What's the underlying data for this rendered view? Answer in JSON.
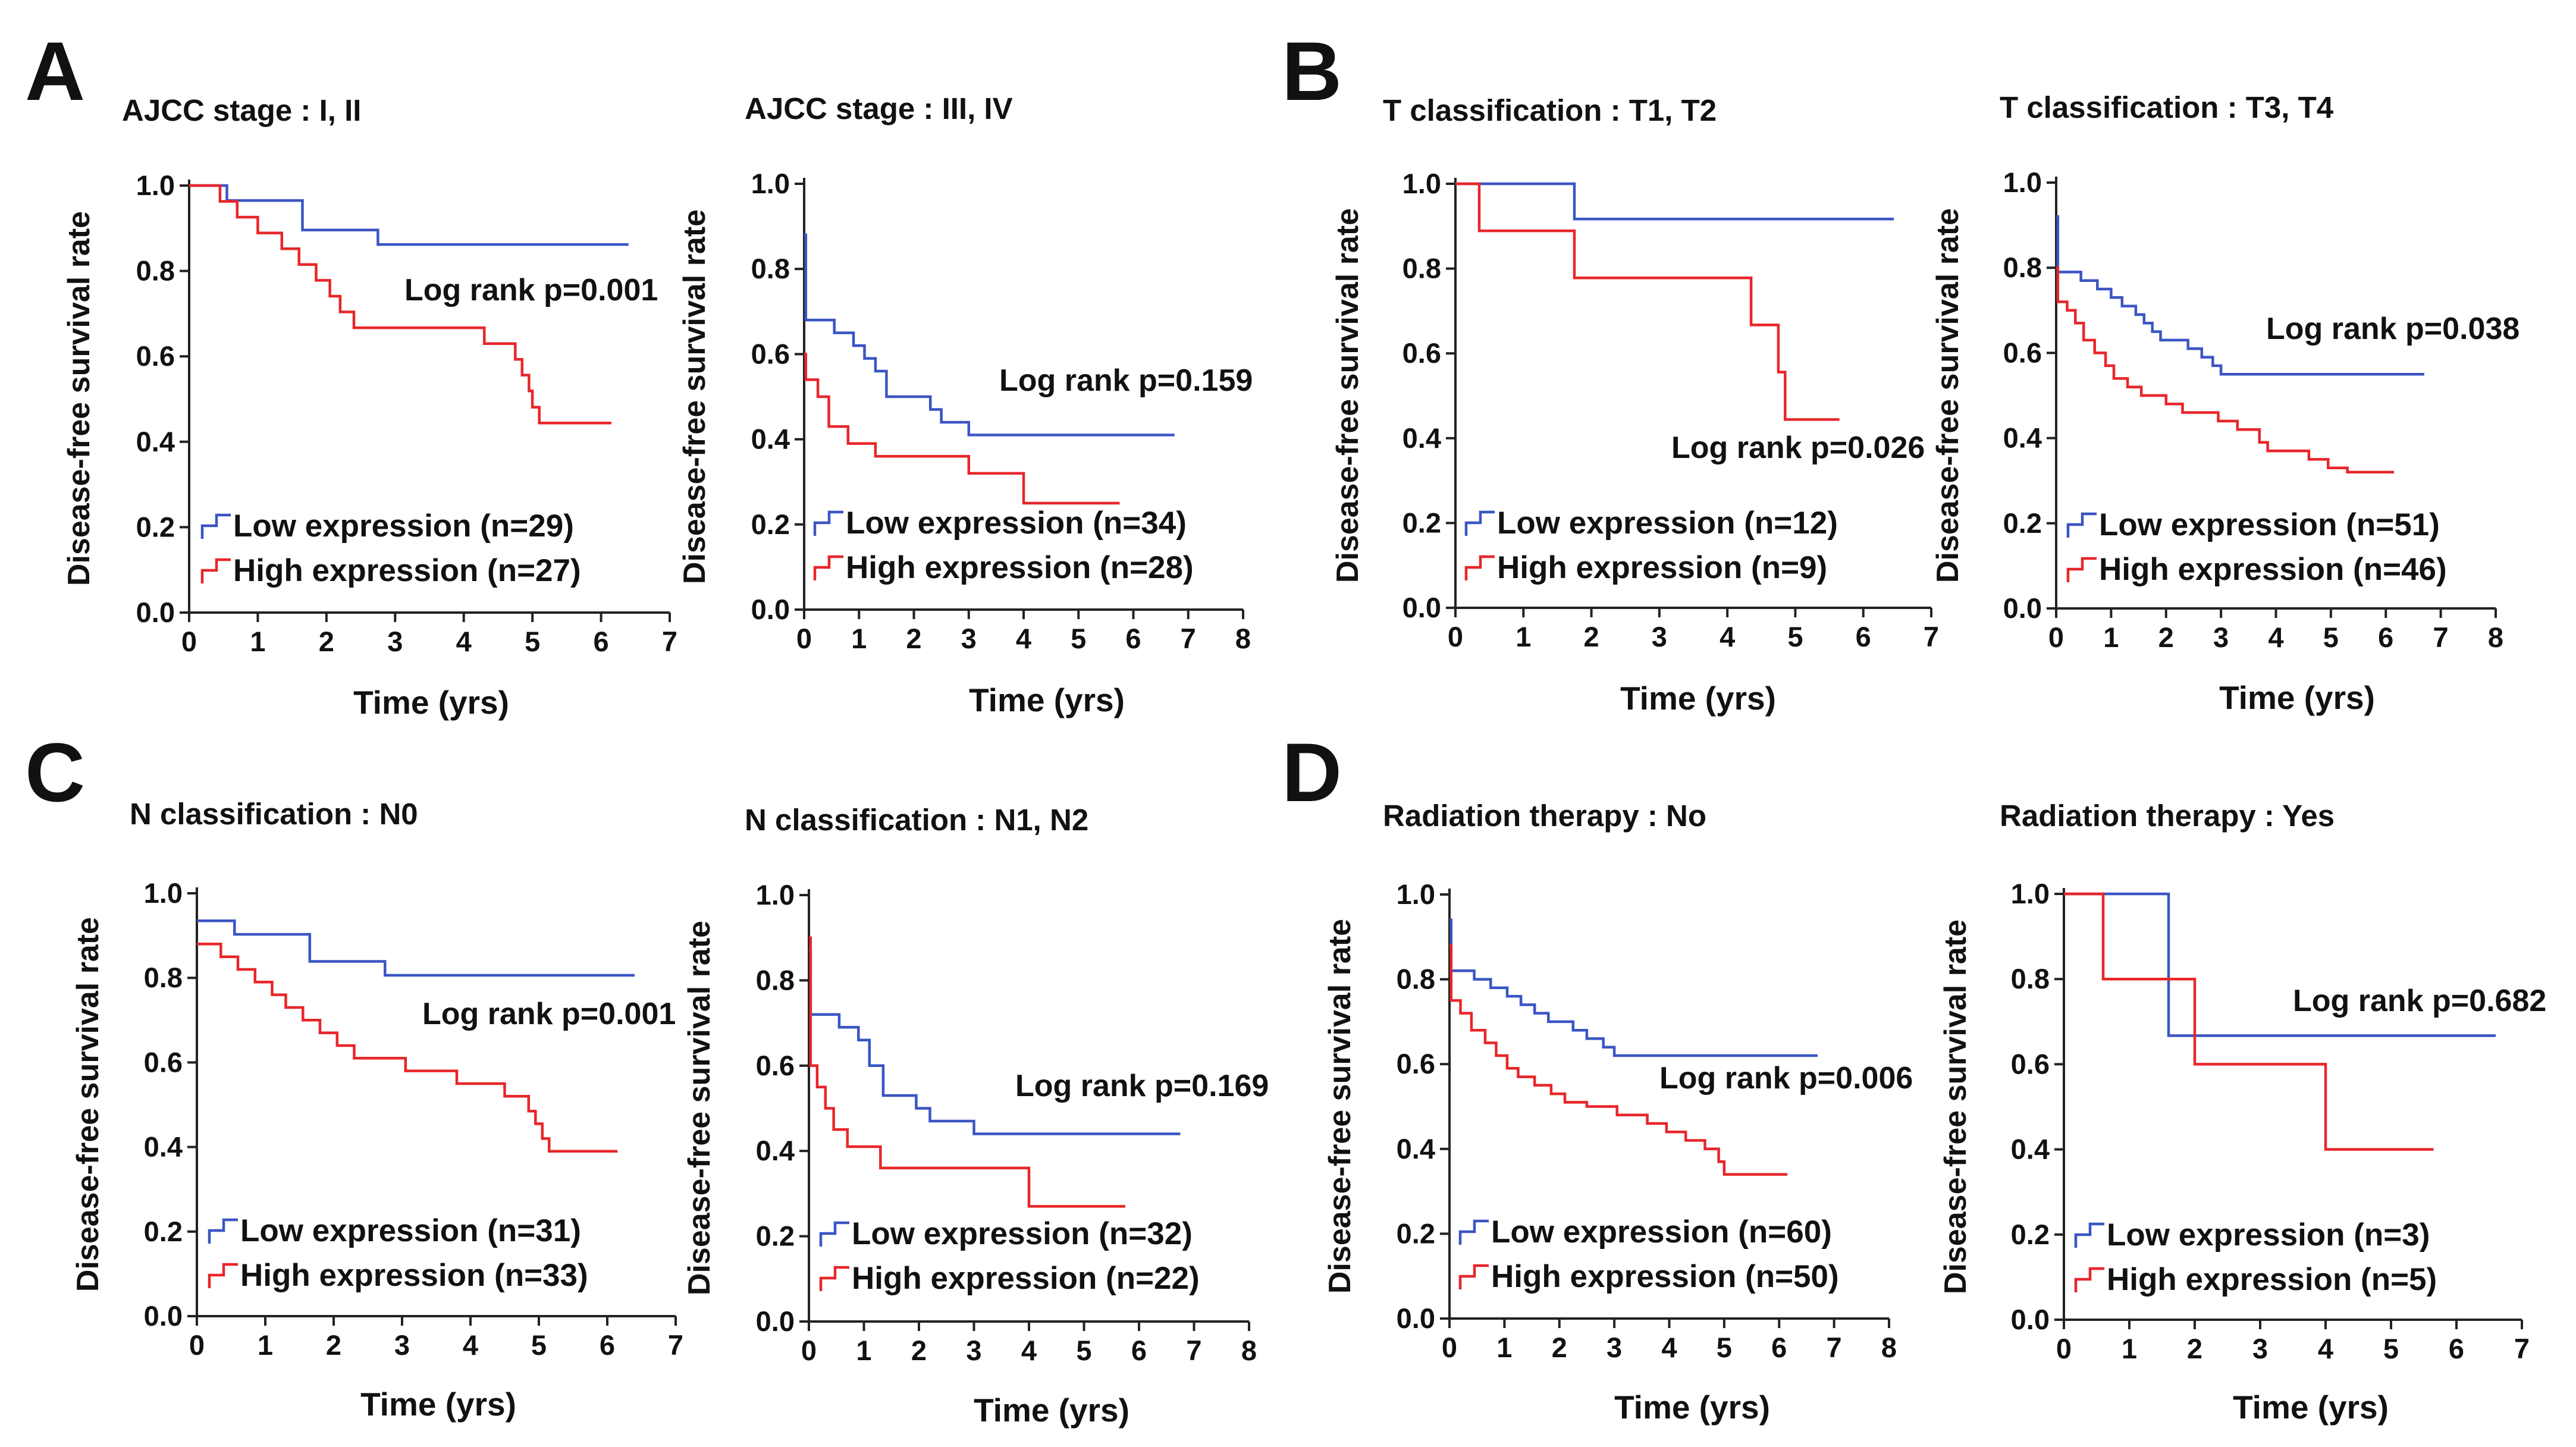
{
  "figure": {
    "panel_labels": [
      "A",
      "B",
      "C",
      "D"
    ],
    "colors": {
      "low": "#3b55c4",
      "high": "#e8262a",
      "axis": "#222222",
      "text": "#111111"
    }
  },
  "chart_data": [
    {
      "type": "line",
      "id": "a1",
      "panel": "A",
      "title": "AJCC stage : I, II",
      "xlabel": "Time (yrs)",
      "ylabel": "Disease-free survival rate",
      "xlim": [
        0,
        7
      ],
      "ylim": [
        0,
        1
      ],
      "xticks": [
        "0",
        "1",
        "2",
        "3",
        "4",
        "5",
        "6",
        "7"
      ],
      "yticks": [
        "0.0",
        "0.2",
        "0.4",
        "0.6",
        "0.8",
        "1.0"
      ],
      "pvalue": "Log rank p=0.001",
      "series": [
        {
          "name": "Low expression (n=29)",
          "color": "#3b55c4",
          "steps": [
            [
              0,
              1.0
            ],
            [
              0.55,
              0.965
            ],
            [
              1.65,
              0.896
            ],
            [
              2.75,
              0.862
            ],
            [
              6.4,
              0.862
            ]
          ]
        },
        {
          "name": "High expression (n=27)",
          "color": "#e8262a",
          "steps": [
            [
              0,
              1.0
            ],
            [
              0.45,
              0.963
            ],
            [
              0.7,
              0.926
            ],
            [
              1.0,
              0.889
            ],
            [
              1.35,
              0.852
            ],
            [
              1.6,
              0.815
            ],
            [
              1.85,
              0.778
            ],
            [
              2.05,
              0.741
            ],
            [
              2.2,
              0.704
            ],
            [
              2.4,
              0.667
            ],
            [
              4.3,
              0.63
            ],
            [
              4.75,
              0.593
            ],
            [
              4.85,
              0.556
            ],
            [
              4.95,
              0.519
            ],
            [
              5.0,
              0.481
            ],
            [
              5.1,
              0.444
            ],
            [
              6.15,
              0.444
            ]
          ]
        }
      ]
    },
    {
      "type": "line",
      "id": "a2",
      "panel": "A",
      "title": "AJCC stage : III, IV",
      "xlabel": "Time (yrs)",
      "ylabel": "Disease-free survival rate",
      "xlim": [
        0,
        8
      ],
      "ylim": [
        0,
        1
      ],
      "xticks": [
        "0",
        "1",
        "2",
        "3",
        "4",
        "5",
        "6",
        "7",
        "8"
      ],
      "yticks": [
        "0.0",
        "0.2",
        "0.4",
        "0.6",
        "0.8",
        "1.0"
      ],
      "pvalue": "Log rank p=0.159",
      "series": [
        {
          "name": "Low expression (n=34)",
          "color": "#3b55c4",
          "steps": [
            [
              0,
              0.88
            ],
            [
              0.03,
              0.68
            ],
            [
              0.55,
              0.65
            ],
            [
              0.9,
              0.62
            ],
            [
              1.1,
              0.59
            ],
            [
              1.3,
              0.56
            ],
            [
              1.5,
              0.5
            ],
            [
              2.3,
              0.47
            ],
            [
              2.5,
              0.44
            ],
            [
              3.0,
              0.41
            ],
            [
              6.75,
              0.41
            ]
          ]
        },
        {
          "name": "High expression (n=28)",
          "color": "#e8262a",
          "steps": [
            [
              0,
              0.6
            ],
            [
              0.03,
              0.54
            ],
            [
              0.25,
              0.5
            ],
            [
              0.45,
              0.43
            ],
            [
              0.8,
              0.39
            ],
            [
              1.3,
              0.36
            ],
            [
              3.0,
              0.32
            ],
            [
              4.0,
              0.25
            ],
            [
              5.75,
              0.25
            ]
          ]
        }
      ]
    },
    {
      "type": "line",
      "id": "b1",
      "panel": "B",
      "title": "T classification : T1, T2",
      "xlabel": "Time (yrs)",
      "ylabel": "Disease-free survival rate",
      "xlim": [
        0,
        7
      ],
      "ylim": [
        0,
        1
      ],
      "xticks": [
        "0",
        "1",
        "2",
        "3",
        "4",
        "5",
        "6",
        "7"
      ],
      "yticks": [
        "0.0",
        "0.2",
        "0.4",
        "0.6",
        "0.8",
        "1.0"
      ],
      "pvalue": "Log rank p=0.026",
      "series": [
        {
          "name": "Low expression (n=12)",
          "color": "#3b55c4",
          "steps": [
            [
              0,
              1.0
            ],
            [
              1.75,
              0.917
            ],
            [
              6.45,
              0.917
            ]
          ]
        },
        {
          "name": "High expression (n=9)",
          "color": "#e8262a",
          "steps": [
            [
              0,
              1.0
            ],
            [
              0.35,
              0.889
            ],
            [
              1.75,
              0.778
            ],
            [
              4.35,
              0.667
            ],
            [
              4.75,
              0.556
            ],
            [
              4.85,
              0.444
            ],
            [
              5.65,
              0.444
            ]
          ]
        }
      ]
    },
    {
      "type": "line",
      "id": "b2",
      "panel": "B",
      "title": "T classification : T3, T4",
      "xlabel": "Time (yrs)",
      "ylabel": "Disease-free survival rate",
      "xlim": [
        0,
        8
      ],
      "ylim": [
        0,
        1
      ],
      "xticks": [
        "0",
        "1",
        "2",
        "3",
        "4",
        "5",
        "6",
        "7",
        "8"
      ],
      "yticks": [
        "0.0",
        "0.2",
        "0.4",
        "0.6",
        "0.8",
        "1.0"
      ],
      "pvalue": "Log rank p=0.038",
      "series": [
        {
          "name": "Low expression (n=51)",
          "color": "#3b55c4",
          "steps": [
            [
              0,
              0.92
            ],
            [
              0.03,
              0.79
            ],
            [
              0.45,
              0.77
            ],
            [
              0.75,
              0.75
            ],
            [
              1.0,
              0.73
            ],
            [
              1.2,
              0.71
            ],
            [
              1.45,
              0.69
            ],
            [
              1.6,
              0.67
            ],
            [
              1.75,
              0.65
            ],
            [
              1.9,
              0.63
            ],
            [
              2.4,
              0.61
            ],
            [
              2.65,
              0.59
            ],
            [
              2.85,
              0.57
            ],
            [
              3.0,
              0.55
            ],
            [
              6.7,
              0.55
            ]
          ]
        },
        {
          "name": "High expression (n=46)",
          "color": "#e8262a",
          "steps": [
            [
              0,
              0.8
            ],
            [
              0.03,
              0.72
            ],
            [
              0.2,
              0.7
            ],
            [
              0.35,
              0.67
            ],
            [
              0.5,
              0.63
            ],
            [
              0.7,
              0.6
            ],
            [
              0.9,
              0.57
            ],
            [
              1.05,
              0.54
            ],
            [
              1.3,
              0.52
            ],
            [
              1.55,
              0.5
            ],
            [
              2.0,
              0.48
            ],
            [
              2.3,
              0.46
            ],
            [
              2.95,
              0.44
            ],
            [
              3.3,
              0.42
            ],
            [
              3.7,
              0.39
            ],
            [
              3.85,
              0.37
            ],
            [
              4.6,
              0.35
            ],
            [
              4.95,
              0.33
            ],
            [
              5.3,
              0.32
            ],
            [
              6.15,
              0.32
            ]
          ]
        }
      ]
    },
    {
      "type": "line",
      "id": "c1",
      "panel": "C",
      "title": "N classification : N0",
      "xlabel": "Time (yrs)",
      "ylabel": "Disease-free survival rate",
      "xlim": [
        0,
        7
      ],
      "ylim": [
        0,
        1
      ],
      "xticks": [
        "0",
        "1",
        "2",
        "3",
        "4",
        "5",
        "6",
        "7"
      ],
      "yticks": [
        "0.0",
        "0.2",
        "0.4",
        "0.6",
        "0.8",
        "1.0"
      ],
      "pvalue": "Log rank p=0.001",
      "series": [
        {
          "name": "Low expression (n=31)",
          "color": "#3b55c4",
          "steps": [
            [
              0,
              0.935
            ],
            [
              0.55,
              0.903
            ],
            [
              1.65,
              0.839
            ],
            [
              2.75,
              0.806
            ],
            [
              6.4,
              0.806
            ]
          ]
        },
        {
          "name": "High expression (n=33)",
          "color": "#e8262a",
          "steps": [
            [
              0,
              0.88
            ],
            [
              0.35,
              0.85
            ],
            [
              0.6,
              0.82
            ],
            [
              0.85,
              0.79
            ],
            [
              1.1,
              0.76
            ],
            [
              1.3,
              0.73
            ],
            [
              1.55,
              0.7
            ],
            [
              1.8,
              0.67
            ],
            [
              2.05,
              0.64
            ],
            [
              2.3,
              0.61
            ],
            [
              3.05,
              0.58
            ],
            [
              3.8,
              0.55
            ],
            [
              4.5,
              0.52
            ],
            [
              4.85,
              0.485
            ],
            [
              4.95,
              0.455
            ],
            [
              5.05,
              0.42
            ],
            [
              5.15,
              0.39
            ],
            [
              6.15,
              0.39
            ]
          ]
        }
      ]
    },
    {
      "type": "line",
      "id": "c2",
      "panel": "C",
      "title": "N classification : N1, N2",
      "xlabel": "Time (yrs)",
      "ylabel": "Disease-free survival rate",
      "xlim": [
        0,
        8
      ],
      "ylim": [
        0,
        1
      ],
      "xticks": [
        "0",
        "1",
        "2",
        "3",
        "4",
        "5",
        "6",
        "7",
        "8"
      ],
      "yticks": [
        "0.0",
        "0.2",
        "0.4",
        "0.6",
        "0.8",
        "1.0"
      ],
      "pvalue": "Log rank p=0.169",
      "series": [
        {
          "name": "Low expression (n=32)",
          "color": "#3b55c4",
          "steps": [
            [
              0,
              0.87
            ],
            [
              0.03,
              0.72
            ],
            [
              0.55,
              0.69
            ],
            [
              0.9,
              0.66
            ],
            [
              1.1,
              0.6
            ],
            [
              1.35,
              0.53
            ],
            [
              1.95,
              0.5
            ],
            [
              2.2,
              0.47
            ],
            [
              3.0,
              0.44
            ],
            [
              6.75,
              0.44
            ]
          ]
        },
        {
          "name": "High expression (n=22)",
          "color": "#e8262a",
          "steps": [
            [
              0,
              0.9
            ],
            [
              0.03,
              0.6
            ],
            [
              0.15,
              0.55
            ],
            [
              0.3,
              0.5
            ],
            [
              0.45,
              0.45
            ],
            [
              0.7,
              0.41
            ],
            [
              1.3,
              0.36
            ],
            [
              4.0,
              0.27
            ],
            [
              5.75,
              0.27
            ]
          ]
        }
      ]
    },
    {
      "type": "line",
      "id": "d1",
      "panel": "D",
      "title": "Radiation therapy : No",
      "xlabel": "Time (yrs)",
      "ylabel": "Disease-free survival rate",
      "xlim": [
        0,
        8
      ],
      "ylim": [
        0,
        1
      ],
      "xticks": [
        "0",
        "1",
        "2",
        "3",
        "4",
        "5",
        "6",
        "7",
        "8"
      ],
      "yticks": [
        "0.0",
        "0.2",
        "0.4",
        "0.6",
        "0.8",
        "1.0"
      ],
      "pvalue": "Log rank p=0.006",
      "series": [
        {
          "name": "Low expression (n=60)",
          "color": "#3b55c4",
          "steps": [
            [
              0,
              0.94
            ],
            [
              0.03,
              0.82
            ],
            [
              0.45,
              0.8
            ],
            [
              0.75,
              0.78
            ],
            [
              1.05,
              0.76
            ],
            [
              1.3,
              0.74
            ],
            [
              1.55,
              0.72
            ],
            [
              1.8,
              0.7
            ],
            [
              2.25,
              0.68
            ],
            [
              2.5,
              0.66
            ],
            [
              2.8,
              0.64
            ],
            [
              3.0,
              0.62
            ],
            [
              6.7,
              0.62
            ]
          ]
        },
        {
          "name": "High expression (n=50)",
          "color": "#e8262a",
          "steps": [
            [
              0,
              0.88
            ],
            [
              0.03,
              0.75
            ],
            [
              0.2,
              0.72
            ],
            [
              0.4,
              0.68
            ],
            [
              0.65,
              0.65
            ],
            [
              0.85,
              0.62
            ],
            [
              1.05,
              0.59
            ],
            [
              1.25,
              0.57
            ],
            [
              1.55,
              0.55
            ],
            [
              1.85,
              0.53
            ],
            [
              2.1,
              0.51
            ],
            [
              2.5,
              0.5
            ],
            [
              3.05,
              0.48
            ],
            [
              3.6,
              0.46
            ],
            [
              3.95,
              0.44
            ],
            [
              4.3,
              0.42
            ],
            [
              4.65,
              0.4
            ],
            [
              4.9,
              0.37
            ],
            [
              5.0,
              0.34
            ],
            [
              6.15,
              0.34
            ]
          ]
        }
      ]
    },
    {
      "type": "line",
      "id": "d2",
      "panel": "D",
      "title": "Radiation therapy : Yes",
      "xlabel": "Time (yrs)",
      "ylabel": "Disease-free survival rate",
      "xlim": [
        0,
        7
      ],
      "ylim": [
        0,
        1
      ],
      "xticks": [
        "0",
        "1",
        "2",
        "3",
        "4",
        "5",
        "6",
        "7"
      ],
      "yticks": [
        "0.0",
        "0.2",
        "0.4",
        "0.6",
        "0.8",
        "1.0"
      ],
      "pvalue": "Log rank p=0.682",
      "series": [
        {
          "name": "Low expression (n=3)",
          "color": "#3b55c4",
          "steps": [
            [
              0,
              1.0
            ],
            [
              1.6,
              0.667
            ],
            [
              6.6,
              0.667
            ]
          ]
        },
        {
          "name": "High expression (n=5)",
          "color": "#e8262a",
          "steps": [
            [
              0,
              1.0
            ],
            [
              0.6,
              0.8
            ],
            [
              2.0,
              0.6
            ],
            [
              4.0,
              0.4
            ],
            [
              5.65,
              0.4
            ]
          ]
        }
      ]
    }
  ]
}
